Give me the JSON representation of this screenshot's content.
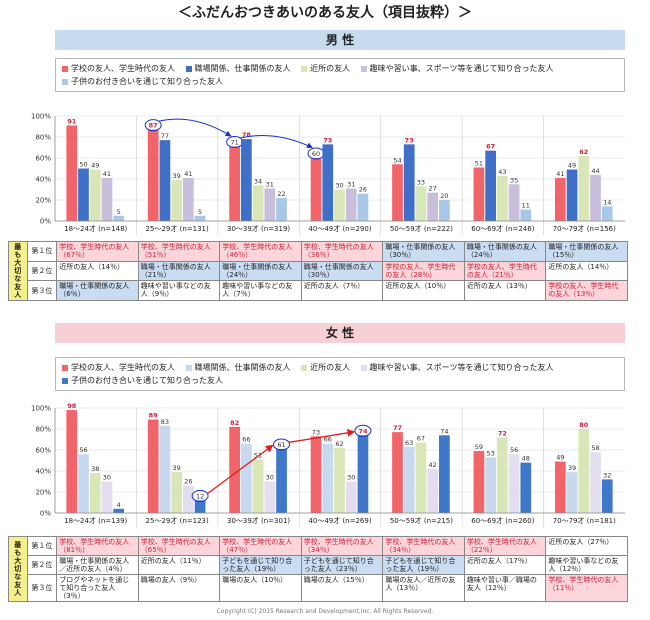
{
  "title": "＜ふだんおつきあいのある友人（項目抜粋）＞",
  "copyright": "Copyright (C) 2015 Research and Development,Inc. All Rights Reserved.",
  "colors": {
    "school": "#f0646a",
    "work": "#3f6fc6",
    "neighbor": "#d9e7b8",
    "hobby": "#c9bedc",
    "kids": "#a8c8e8",
    "kids_female": "#3f78c8"
  },
  "male": {
    "band_label": "男 性",
    "legend": [
      "学校の友人、学生時代の友人",
      "職場関係、仕事関係の友人",
      "近所の友人",
      "趣味や習い事、スポーツ等を通じて知り合った友人",
      "子供のお付き合いを通じて知り合った友人"
    ],
    "ranking_side_label": "最も大切な友人",
    "rank_labels": [
      "第１位",
      "第２位",
      "第３位"
    ],
    "rankings": [
      [
        {
          "text": "学校、学生時代の友人（67％）",
          "type": "school"
        },
        {
          "text": "学校、学生時代の友人（51％）",
          "type": "school"
        },
        {
          "text": "学校、学生時代の友人（46％）",
          "type": "school"
        },
        {
          "text": "学校、学生時代の友人（36％）",
          "type": "school"
        },
        {
          "text": "職場・仕事関係の友人（30％）",
          "type": "work"
        },
        {
          "text": "職場・仕事関係の友人（24％）",
          "type": "work"
        },
        {
          "text": "職場・仕事関係の友人（15％）",
          "type": "work"
        }
      ],
      [
        {
          "text": "近所の友人（14％）",
          "type": "none"
        },
        {
          "text": "職場・仕事関係の友人（21％）",
          "type": "work"
        },
        {
          "text": "職場・仕事関係の友人（24％）",
          "type": "work"
        },
        {
          "text": "職場・仕事関係の友人（30％）",
          "type": "work"
        },
        {
          "text": "学校の友人、学生時代の友人（28％）",
          "type": "school"
        },
        {
          "text": "学校の友人、学生時代の友人（21％）",
          "type": "school"
        },
        {
          "text": "近所の友人（14％）",
          "type": "none"
        }
      ],
      [
        {
          "text": "職場・仕事関係の友人（6％）",
          "type": "work"
        },
        {
          "text": "趣味や習い事などの友人（9％）",
          "type": "none"
        },
        {
          "text": "趣味や習い事などの友人（7％）",
          "type": "none"
        },
        {
          "text": "近所の友人（7％）",
          "type": "none"
        },
        {
          "text": "近所の友人（10％）",
          "type": "none"
        },
        {
          "text": "近所の友人（13％）",
          "type": "none"
        },
        {
          "text": "学校の友人、学生時代の友人（13％）",
          "type": "school"
        }
      ]
    ]
  },
  "female": {
    "band_label": "女 性",
    "legend": [
      "学校の友人、学生時代の友人",
      "職場関係、仕事関係の友人",
      "近所の友人",
      "趣味や習い事、スポーツ等を通じて知り合った友人",
      "子供のお付き合いを通じて知り合った友人"
    ],
    "ranking_side_label": "最も大切な友人",
    "rank_labels": [
      "第１位",
      "第２位",
      "第３位"
    ],
    "rankings": [
      [
        {
          "text": "学校、学生時代の友人（81％）",
          "type": "school"
        },
        {
          "text": "学校、学生時代の友人（65％）",
          "type": "school"
        },
        {
          "text": "学校、学生時代の友人（47％）",
          "type": "school"
        },
        {
          "text": "学校、学生時代の友人（34％）",
          "type": "school"
        },
        {
          "text": "学校、学生時代の友人（34％）",
          "type": "school"
        },
        {
          "text": "学校、学生時代の友人（22％）",
          "type": "school"
        },
        {
          "text": "近所の友人（27％）",
          "type": "none"
        }
      ],
      [
        {
          "text": "職場・仕事関係の友人／近所の友人（4％）",
          "type": "none"
        },
        {
          "text": "近所の友人（11％）",
          "type": "none"
        },
        {
          "text": "子どもを通じて知り合った友人（19％）",
          "type": "work"
        },
        {
          "text": "子どもを通じて知り合った友人（23％）",
          "type": "work"
        },
        {
          "text": "子どもを通じて知り合った友人（19％）",
          "type": "work"
        },
        {
          "text": "近所の友人（17％）",
          "type": "none"
        },
        {
          "text": "趣味や習い事などの友人（12％）",
          "type": "none"
        }
      ],
      [
        {
          "text": "ブログやネットを通じて知り合った友人（3％）",
          "type": "none"
        },
        {
          "text": "職場の友人（9％）",
          "type": "none"
        },
        {
          "text": "職場の友人（10％）",
          "type": "none"
        },
        {
          "text": "職場の友人（15％）",
          "type": "none"
        },
        {
          "text": "職場の友人／近所の友人（13％）",
          "type": "none"
        },
        {
          "text": "趣味や習い事／職場の友人（12％）",
          "type": "none"
        },
        {
          "text": "学校、学生時代の友人（11％）",
          "type": "school"
        }
      ]
    ]
  },
  "chart_data": [
    {
      "type": "bar",
      "title": "男 性",
      "categories": [
        "18～24才 (n=148)",
        "25～29才 (n=131)",
        "30～39才 (n=319)",
        "40～49才 (n=290)",
        "50～59才 (n=222)",
        "60～69才 (n=246)",
        "70～79才 (n=156)"
      ],
      "ylim": [
        0,
        100
      ],
      "yticks": [
        "0%",
        "20%",
        "40%",
        "60%",
        "80%",
        "100%"
      ],
      "series": [
        {
          "name": "学校の友人、学生時代の友人",
          "values": [
            91,
            87,
            71,
            60,
            54,
            51,
            41
          ]
        },
        {
          "name": "職場関係、仕事関係の友人",
          "values": [
            50,
            77,
            78,
            73,
            73,
            67,
            49
          ]
        },
        {
          "name": "近所の友人",
          "values": [
            49,
            39,
            34,
            30,
            33,
            43,
            62
          ]
        },
        {
          "name": "趣味や習い事、スポーツ等を通じて知り合った友人",
          "values": [
            41,
            41,
            31,
            31,
            27,
            35,
            44
          ]
        },
        {
          "name": "子供のお付き合いを通じて知り合った友人",
          "values": [
            5,
            5,
            22,
            26,
            20,
            11,
            14
          ]
        }
      ],
      "highlight_labels": [
        [
          0,
          0
        ],
        [
          1,
          0
        ],
        [
          2,
          1
        ],
        [
          3,
          1
        ],
        [
          4,
          1
        ],
        [
          5,
          1
        ],
        [
          6,
          2
        ]
      ],
      "circled": [
        [
          1,
          0
        ],
        [
          2,
          0
        ],
        [
          3,
          0
        ]
      ]
    },
    {
      "type": "bar",
      "title": "女 性",
      "categories": [
        "18～24才 (n=139)",
        "25～29才 (n=123)",
        "30～39才 (n=301)",
        "40～49才 (n=269)",
        "50～59才 (n=215)",
        "60～69才 (n=260)",
        "70～79才 (n=181)"
      ],
      "ylim": [
        0,
        100
      ],
      "yticks": [
        "0%",
        "20%",
        "40%",
        "60%",
        "80%",
        "100%"
      ],
      "series": [
        {
          "name": "学校の友人、学生時代の友人",
          "values": [
            98,
            89,
            82,
            73,
            77,
            59,
            49
          ]
        },
        {
          "name": "職場関係、仕事関係の友人",
          "values": [
            56,
            83,
            66,
            66,
            63,
            53,
            39
          ]
        },
        {
          "name": "近所の友人",
          "values": [
            38,
            39,
            51,
            62,
            67,
            72,
            80
          ]
        },
        {
          "name": "趣味や習い事、スポーツ等を通じて知り合った友人",
          "values": [
            30,
            26,
            30,
            30,
            42,
            56,
            58
          ]
        },
        {
          "name": "子供のお付き合いを通じて知り合った友人",
          "values": [
            4,
            12,
            61,
            74,
            74,
            48,
            32
          ]
        }
      ],
      "highlight_labels": [
        [
          0,
          0
        ],
        [
          1,
          0
        ],
        [
          2,
          0
        ],
        [
          3,
          4
        ],
        [
          4,
          0
        ],
        [
          5,
          2
        ],
        [
          6,
          2
        ]
      ],
      "circled": [
        [
          1,
          4
        ],
        [
          2,
          4
        ],
        [
          3,
          4
        ]
      ]
    }
  ]
}
